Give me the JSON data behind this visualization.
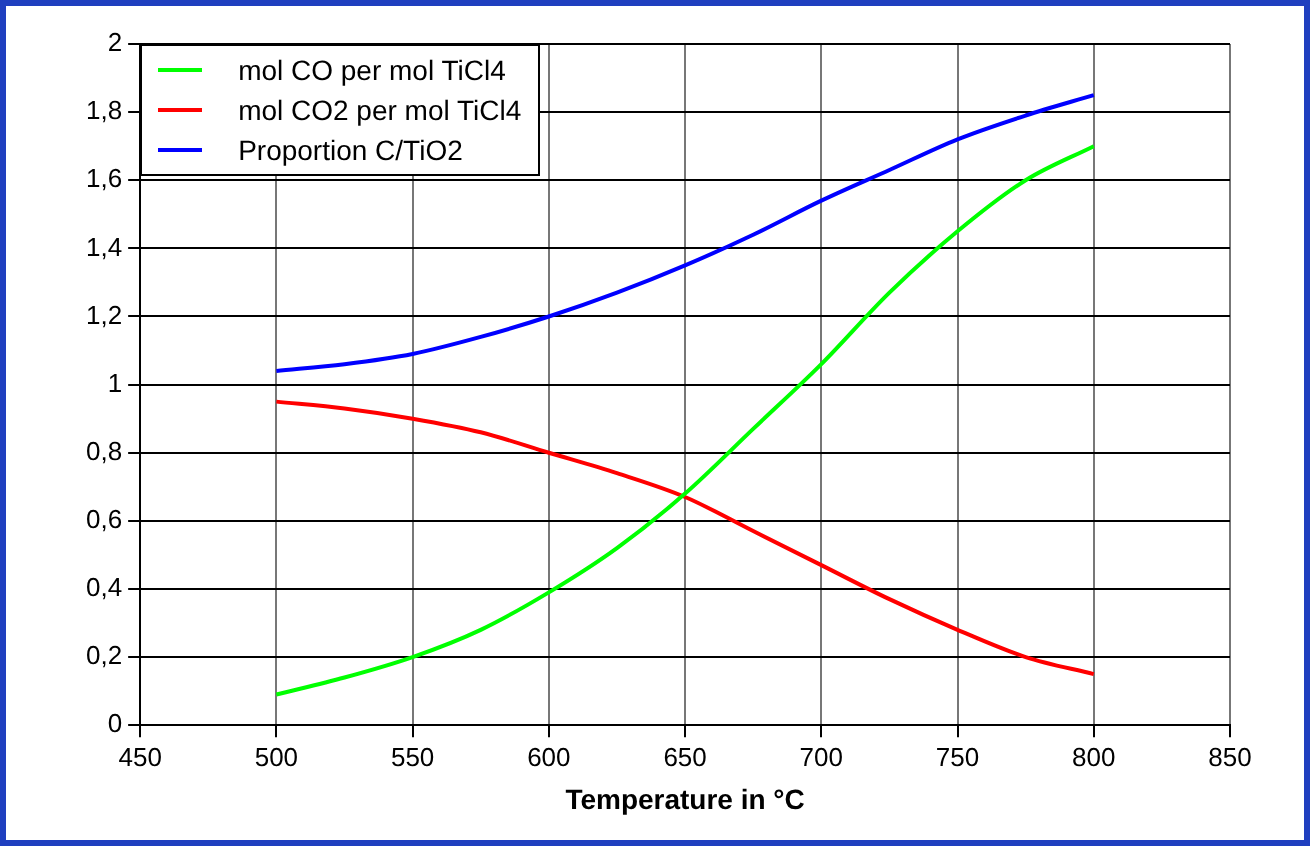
{
  "chart_data": {
    "type": "line",
    "xlabel": "Temperature in °C",
    "x": [
      500,
      525,
      550,
      575,
      600,
      625,
      650,
      675,
      700,
      725,
      750,
      775,
      800
    ],
    "series": [
      {
        "name": "mol CO per mol TiCl4",
        "color": "#00ff00",
        "values": [
          0.09,
          0.14,
          0.2,
          0.28,
          0.39,
          0.52,
          0.68,
          0.87,
          1.06,
          1.27,
          1.45,
          1.6,
          1.7
        ]
      },
      {
        "name": "mol CO2 per mol TiCl4",
        "color": "#ff0000",
        "values": [
          0.95,
          0.93,
          0.9,
          0.86,
          0.8,
          0.74,
          0.67,
          0.57,
          0.47,
          0.37,
          0.28,
          0.2,
          0.15
        ]
      },
      {
        "name": "Proportion C/TiO2",
        "color": "#0000ff",
        "values": [
          1.04,
          1.06,
          1.09,
          1.14,
          1.2,
          1.27,
          1.35,
          1.44,
          1.54,
          1.63,
          1.72,
          1.79,
          1.85
        ]
      }
    ],
    "xlim": [
      450,
      850
    ],
    "xticks": [
      450,
      500,
      550,
      600,
      650,
      700,
      750,
      800,
      850
    ],
    "ylim": [
      0,
      2
    ],
    "yticks": [
      0,
      {
        "value": 0.2,
        "label": "0,2"
      },
      {
        "value": 0.4,
        "label": "0,4"
      },
      {
        "value": 0.6,
        "label": "0,6"
      },
      {
        "value": 0.8,
        "label": "0,8"
      },
      1,
      {
        "value": 1.2,
        "label": "1,2"
      },
      {
        "value": 1.4,
        "label": "1,4"
      },
      {
        "value": 1.6,
        "label": "1,6"
      },
      {
        "value": 1.8,
        "label": "1,8"
      },
      2
    ],
    "grid": true,
    "legend": "top left",
    "marker": "none",
    "line_style": "solid"
  }
}
